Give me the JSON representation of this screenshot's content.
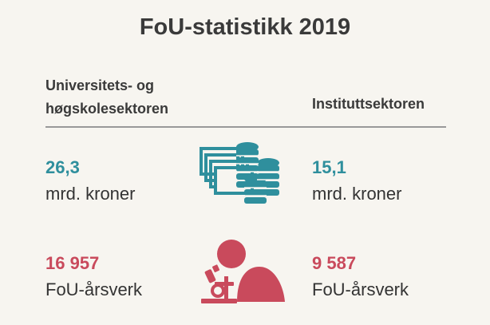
{
  "title": "FoU-statistikk 2019",
  "columns": {
    "left_line1": "Universitets- og",
    "left_line2": "høgskolesektoren",
    "right": "Instituttsektoren"
  },
  "stats": {
    "uh_money_value": "26,3",
    "uh_money_unit": "mrd. kroner",
    "inst_money_value": "15,1",
    "inst_money_unit": "mrd. kroner",
    "uh_fte_value": "16 957",
    "uh_fte_unit": "FoU-årsverk",
    "inst_fte_value": "9 587",
    "inst_fte_unit": "FoU-årsverk"
  },
  "icons": {
    "money": "money-coins-icon",
    "research": "researcher-microscope-icon"
  },
  "colors": {
    "teal": "#2f8f9d",
    "red": "#c94a5c",
    "background": "#f7f5f0"
  }
}
